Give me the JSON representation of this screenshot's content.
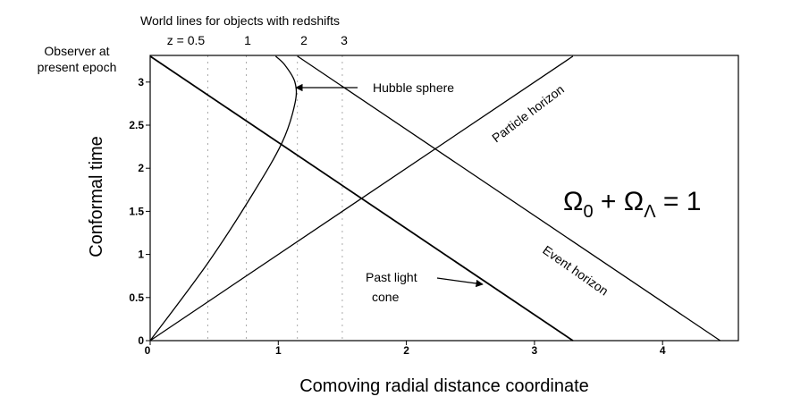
{
  "chart_data": {
    "type": "line",
    "title": "",
    "xlabel": "Comoving radial distance coordinate",
    "ylabel": "Conformal time",
    "xlim": [
      0,
      4.6
    ],
    "ylim": [
      0,
      3.3
    ],
    "x_ticks": [
      0,
      1,
      2,
      3,
      4
    ],
    "y_ticks": [
      0,
      0.5,
      1,
      1.5,
      2,
      2.5,
      3
    ],
    "grid": false,
    "equation": {
      "parts": [
        "Ω",
        "0",
        " + Ω",
        "Λ",
        " = 1"
      ]
    },
    "redshift_header": {
      "title": "World lines for objects with redshifts",
      "labels": [
        "z = 0.5",
        "1",
        "2",
        "3"
      ],
      "x": [
        0.45,
        0.75,
        1.15,
        1.5
      ]
    },
    "observer_label": [
      "Observer at",
      "present epoch"
    ],
    "series": [
      {
        "name": "Past light cone",
        "label_lines": [
          "Past light",
          "cone"
        ],
        "points": [
          [
            0,
            3.3
          ],
          [
            3.3,
            0
          ]
        ]
      },
      {
        "name": "Particle horizon",
        "points": [
          [
            0,
            0
          ],
          [
            3.3,
            3.3
          ]
        ]
      },
      {
        "name": "Event horizon",
        "points": [
          [
            1.15,
            3.3
          ],
          [
            4.45,
            0
          ]
        ]
      },
      {
        "name": "Hubble sphere",
        "points": [
          [
            0,
            0
          ],
          [
            0.45,
            0.9
          ],
          [
            0.8,
            1.7
          ],
          [
            1.03,
            2.3
          ],
          [
            1.13,
            2.75
          ],
          [
            1.13,
            3.0
          ],
          [
            1.05,
            3.2
          ],
          [
            0.98,
            3.3
          ]
        ]
      }
    ]
  }
}
